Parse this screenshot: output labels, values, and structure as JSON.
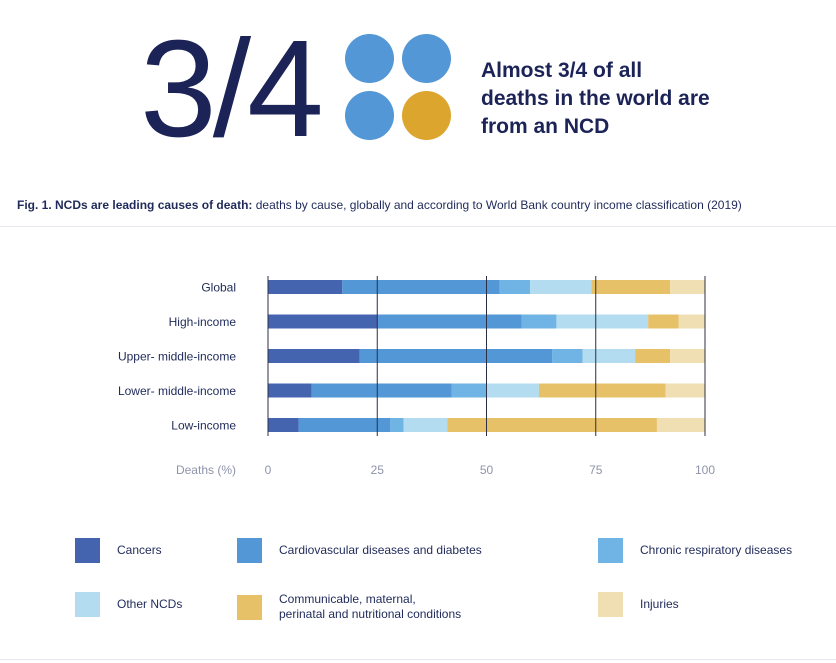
{
  "hero": {
    "big_number": "3/4",
    "statement": "Almost 3/4 of all deaths in the world are from an NCD",
    "dot_colors": [
      "#5397d6",
      "#5397d6",
      "#5397d6",
      "#dca52e"
    ]
  },
  "figure": {
    "caption_bold": "Fig. 1. NCDs are leading causes of death:",
    "caption_rest": " deaths by cause, globally and according to World Bank country income classification (2019)"
  },
  "chart_data": {
    "type": "bar",
    "orientation": "horizontal",
    "stacked": true,
    "categories": [
      "Global",
      "High-income",
      "Upper- middle-income",
      "Lower- middle-income",
      "Low-income"
    ],
    "series": [
      {
        "name": "Cancers",
        "color": "#4464b0",
        "values": [
          17,
          25,
          21,
          10,
          7
        ]
      },
      {
        "name": "Cardiovascular diseases and diabetes",
        "color": "#5397d6",
        "values": [
          36,
          33,
          44,
          32,
          21
        ]
      },
      {
        "name": "Chronic respiratory diseases",
        "color": "#6fb4e5",
        "values": [
          7,
          8,
          7,
          8,
          3
        ]
      },
      {
        "name": "Other NCDs",
        "color": "#b3dcf1",
        "values": [
          14,
          21,
          12,
          12,
          10
        ]
      },
      {
        "name": "Communicable, maternal,\nperinatal and nutritional conditions",
        "color": "#e7c168",
        "values": [
          18,
          7,
          8,
          29,
          48
        ]
      },
      {
        "name": "Injuries",
        "color": "#f1dfb4",
        "values": [
          8,
          6,
          8,
          9,
          11
        ]
      }
    ],
    "xlabel": "Deaths (%)",
    "xlim": [
      0,
      100
    ],
    "xticks": [
      0,
      25,
      50,
      75,
      100
    ],
    "grid": "vertical",
    "legend": "bottom"
  }
}
